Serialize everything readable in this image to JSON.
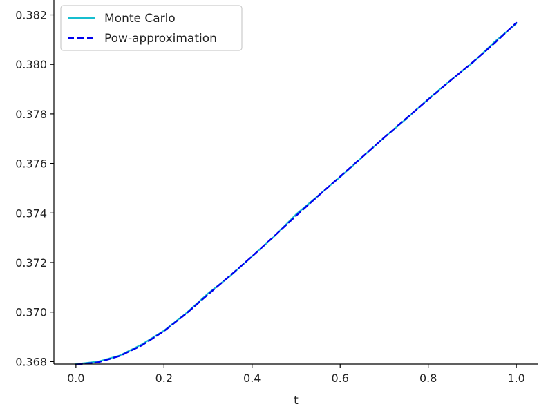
{
  "chart_data": {
    "type": "line",
    "title": "",
    "xlabel": "t",
    "ylabel": "",
    "xlim": [
      -0.05,
      1.05
    ],
    "ylim": [
      0.3679,
      0.3826
    ],
    "xticks": [
      0.0,
      0.2,
      0.4,
      0.6,
      0.8,
      1.0
    ],
    "xtick_labels": [
      "0.0",
      "0.2",
      "0.4",
      "0.6",
      "0.8",
      "1.0"
    ],
    "yticks": [
      0.368,
      0.37,
      0.372,
      0.374,
      0.376,
      0.378,
      0.38,
      0.382
    ],
    "ytick_labels": [
      "0.368",
      "0.370",
      "0.372",
      "0.374",
      "0.376",
      "0.378",
      "0.380",
      "0.382"
    ],
    "grid": false,
    "legend": "top-left",
    "x": [
      0.0,
      0.05,
      0.1,
      0.15,
      0.2,
      0.25,
      0.3,
      0.35,
      0.4,
      0.45,
      0.5,
      0.55,
      0.6,
      0.65,
      0.7,
      0.75,
      0.8,
      0.85,
      0.9,
      0.95,
      1.0
    ],
    "series": [
      {
        "name": "Monte Carlo",
        "color": "#17becf",
        "style": "solid",
        "values": [
          0.3679,
          0.368,
          0.36825,
          0.3687,
          0.36925,
          0.36995,
          0.37075,
          0.37145,
          0.37225,
          0.37305,
          0.37395,
          0.3747,
          0.37545,
          0.37625,
          0.37705,
          0.3778,
          0.3786,
          0.37935,
          0.38005,
          0.3809,
          0.38165
        ]
      },
      {
        "name": "Pow-approximation",
        "color": "#0000ee",
        "style": "dashed",
        "values": [
          0.36788,
          0.36797,
          0.36823,
          0.36866,
          0.36923,
          0.36993,
          0.37071,
          0.37147,
          0.37225,
          0.37306,
          0.37389,
          0.37469,
          0.37547,
          0.37626,
          0.37705,
          0.37782,
          0.37858,
          0.37934,
          0.38007,
          0.38085,
          0.38168
        ]
      }
    ]
  }
}
